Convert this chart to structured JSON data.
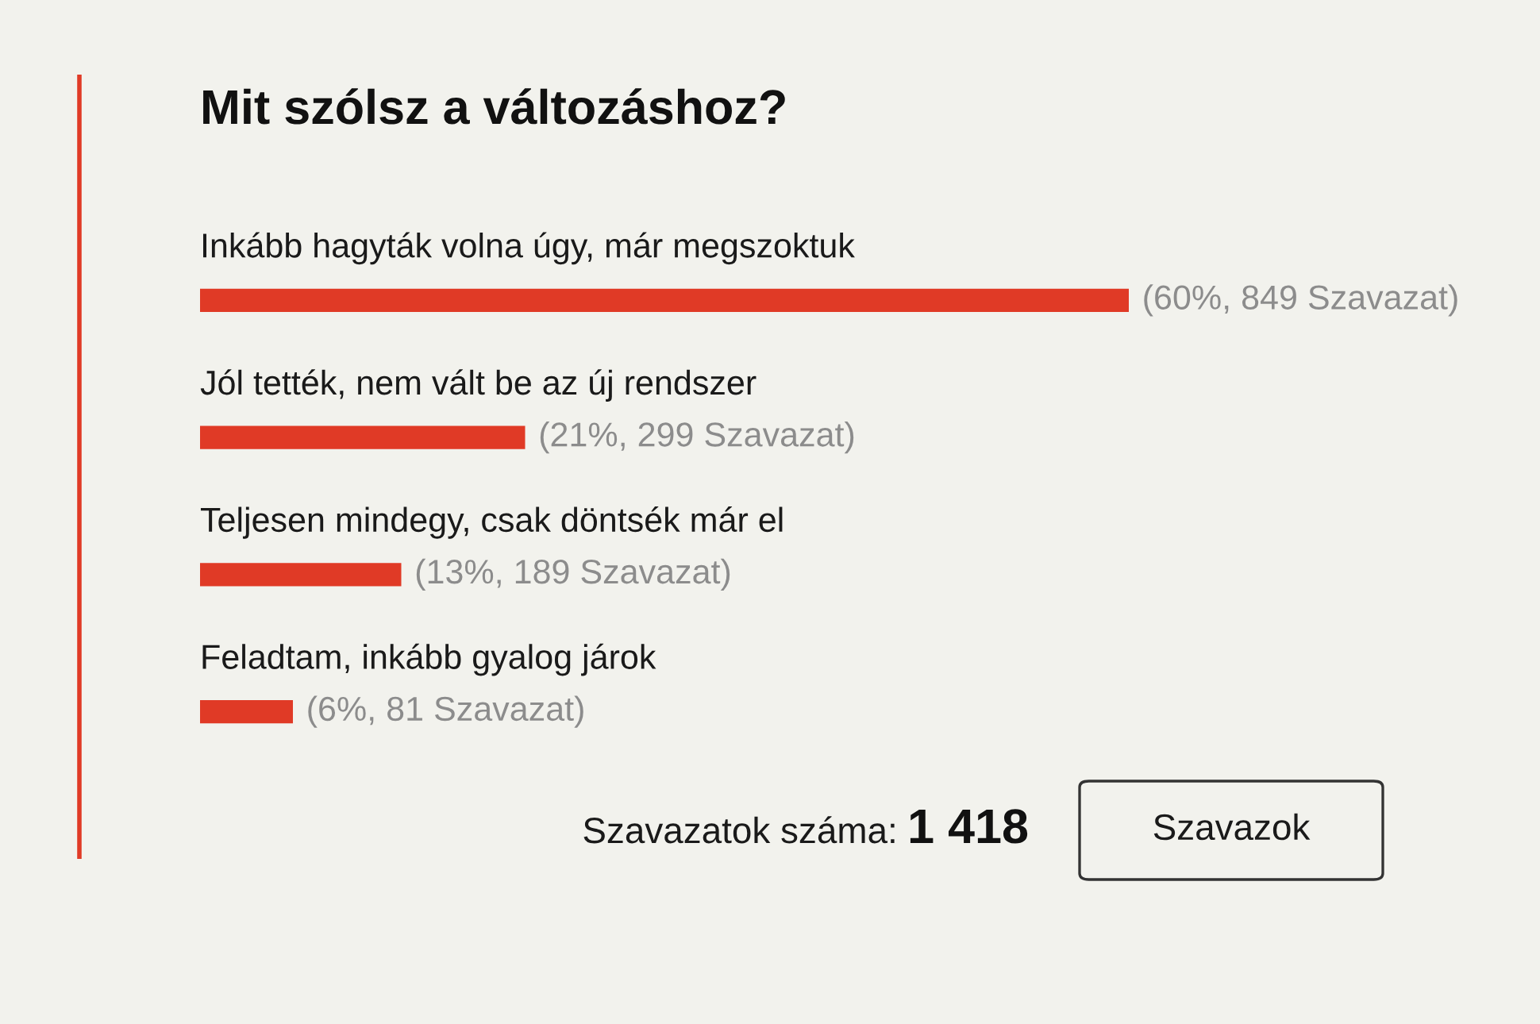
{
  "chart_data": {
    "type": "bar",
    "orientation": "horizontal",
    "title": "Mit szólsz a változáshoz?",
    "categories": [
      "Inkább hagyták volna úgy, már megszoktuk",
      "Jól tették, nem vált be az új rendszer",
      "Teljesen mindegy, csak döntsék már el",
      "Feladtam, inkább gyalog járok"
    ],
    "values": [
      60,
      21,
      13,
      6
    ],
    "value_labels": [
      "(60%, 849 Szavazat)",
      "(21%, 299 Szavazat)",
      "(13%, 189 Szavazat)",
      "(6%, 81 Szavazat)"
    ],
    "color": "#e03a26",
    "annotations": [
      "Szavazatok száma:",
      "1 418",
      "Szavazok"
    ]
  }
}
